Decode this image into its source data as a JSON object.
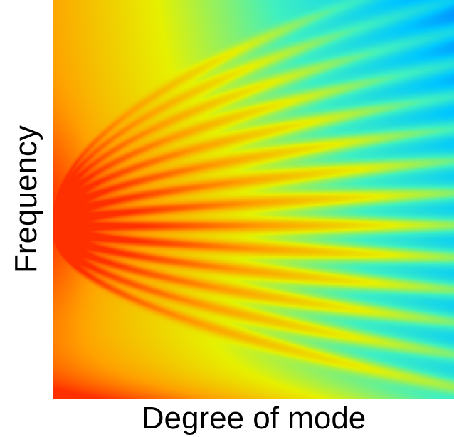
{
  "chart_data": {
    "type": "heatmap",
    "title": "",
    "xlabel": "Degree of mode",
    "ylabel": "Frequency",
    "x_ticks": [],
    "y_ticks": [],
    "grid": false,
    "legend": "none",
    "colormap": "jet",
    "colormap_stops": [
      "#0060ff",
      "#00c8ff",
      "#40f0c0",
      "#e6f000",
      "#ffa000",
      "#ff3000"
    ],
    "ridges": 14,
    "description": ""
  }
}
